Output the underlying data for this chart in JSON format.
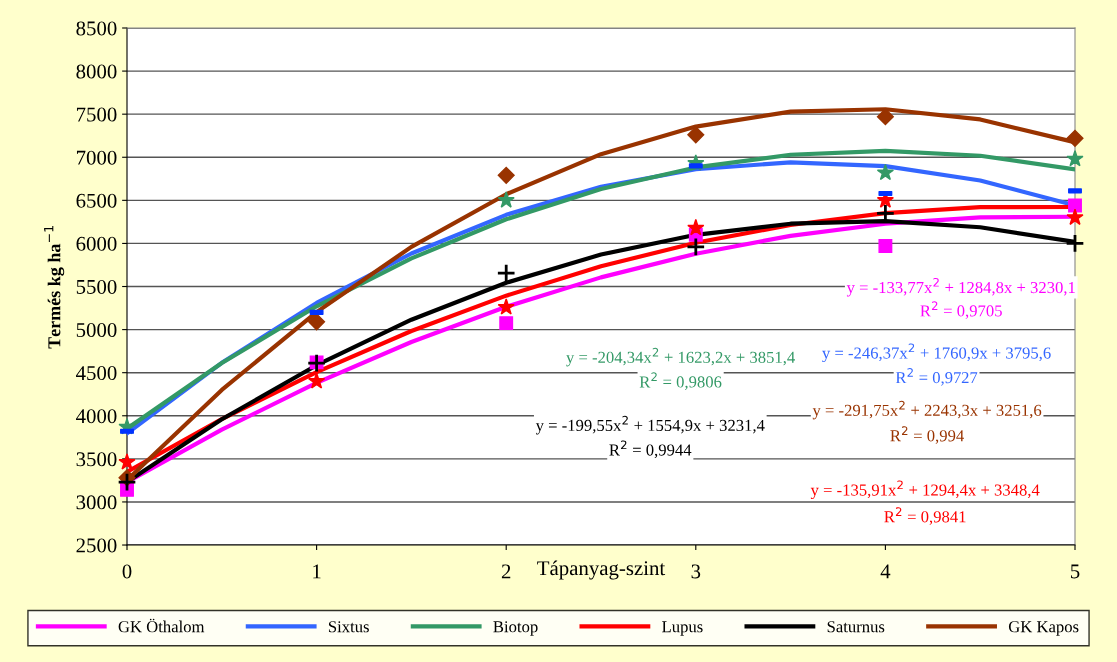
{
  "chart_data": {
    "type": "scatter",
    "xlabel": "Tápanyag-szint",
    "ylabel": "Termés kg ha$^{−1}$",
    "xlim": [
      0,
      5
    ],
    "xticks": [
      0,
      1,
      2,
      3,
      4,
      5
    ],
    "ylim": [
      2500,
      8500
    ],
    "yticks": [
      2500,
      3000,
      3500,
      4000,
      4500,
      5000,
      5500,
      6000,
      6500,
      7000,
      7500,
      8000,
      8500
    ],
    "grid": "y",
    "legend": "bottom",
    "x": [
      0,
      1,
      2,
      3,
      4,
      5
    ],
    "series": [
      {
        "marker": "square",
        "color": "#ff00ff",
        "x": [
          0,
          1,
          2,
          3,
          4,
          5
        ],
        "values": [
          3140,
          4620,
          5075,
          6100,
          5970,
          6440
        ]
      },
      {
        "color": "#0033ff",
        "x": [
          0,
          1,
          2,
          3,
          4,
          5
        ],
        "values": [
          3820,
          5200,
          null,
          6900,
          6580,
          6610
        ]
      },
      {
        "marker": "star",
        "color": "#339966",
        "x": [
          0,
          1,
          2,
          3,
          4,
          5
        ],
        "values": [
          3870,
          null,
          6500,
          6930,
          6820,
          6980
        ]
      },
      {
        "marker": "star",
        "color": "#ff0000",
        "x": [
          0,
          1,
          2,
          3,
          4,
          5
        ],
        "values": [
          3460,
          4400,
          5260,
          6180,
          6500,
          6300
        ]
      },
      {
        "marker": "cross",
        "color": "#000000",
        "values": [
          3230,
          4610,
          5655,
          5960,
          6350,
          6000
        ]
      },
      {
        "marker": "diamond",
        "color": "#993300",
        "x": [
          0,
          1,
          2,
          3,
          4,
          5
        ],
        "values": [
          3280,
          5090,
          6790,
          7260,
          7470,
          7220
        ]
      },
      {
        "type": "line",
        "name": "GK Öthalom",
        "color": "#ff00ff",
        "x": [
          0,
          0.5,
          1,
          1.5,
          2,
          2.5,
          3,
          3.5,
          4,
          4.5,
          5
        ],
        "values": [
          3230,
          3839,
          4381,
          4856,
          5265,
          5606,
          5881,
          6088,
          6229,
          6303,
          6310
        ]
      },
      {
        "type": "line",
        "name": "Sixtus",
        "color": "#3366ff",
        "x": [
          0,
          0.5,
          1,
          1.5,
          2,
          2.5,
          3,
          3.5,
          4,
          4.5,
          5
        ],
        "values": [
          3796,
          4614,
          5310,
          5883,
          6332,
          6658,
          6861,
          6941,
          6897,
          6731,
          6441
        ]
      },
      {
        "type": "line",
        "name": "Biotop",
        "color": "#339966",
        "x": [
          0,
          0.5,
          1,
          1.5,
          2,
          2.5,
          3,
          3.5,
          4,
          4.5,
          5
        ],
        "values": [
          3851,
          4612,
          5270,
          5826,
          6280,
          6632,
          6882,
          7029,
          7075,
          7018,
          6859
        ]
      },
      {
        "type": "line",
        "name": "Lupus",
        "color": "#ff0000",
        "x": [
          0,
          0.5,
          1,
          1.5,
          2,
          2.5,
          3,
          3.5,
          4,
          4.5,
          5
        ],
        "values": [
          3348,
          3962,
          4507,
          4984,
          5394,
          5735,
          6008,
          6214,
          6351,
          6421,
          6423
        ]
      },
      {
        "type": "line",
        "name": "Saturnus",
        "color": "#000000",
        "x": [
          0,
          0.5,
          1,
          1.5,
          2,
          2.5,
          3,
          3.5,
          4,
          4.5,
          5
        ],
        "values": [
          3231,
          3959,
          4587,
          5115,
          5543,
          5871,
          6100,
          6229,
          6258,
          6188,
          6017
        ]
      },
      {
        "type": "line",
        "name": "GK Kapos",
        "color": "#993300",
        "x": [
          0,
          0.5,
          1,
          1.5,
          2,
          2.5,
          3,
          3.5,
          4,
          4.5,
          5
        ],
        "values": [
          3252,
          4300,
          5203,
          5960,
          6571,
          7036,
          7356,
          7529,
          7557,
          7439,
          7174
        ]
      }
    ],
    "annotations": [
      "y = -133,77x$^{2}$ + 1284,8x + 3230,1",
      "R$^{2}$ = 0,9705",
      "y = -246,37x$^{2}$ + 1760,9x + 3795,6",
      "R$^{2}$ = 0,9727",
      "y = -204,34x$^{2}$ + 1623,2x + 3851,4",
      "R$^{2}$ = 0,9806",
      "y = -135,91x$^{2}$ + 1294,4x + 3348,4",
      "R$^{2}$ = 0,9841",
      "y = -199,55x$^{2}$ + 1554,9x + 3231,4",
      "R$^{2}$ = 0,9944",
      "y = -291,75x$^{2}$ + 2243,3x + 3251,6",
      "R$^{2}$ = 0,994"
    ]
  }
}
